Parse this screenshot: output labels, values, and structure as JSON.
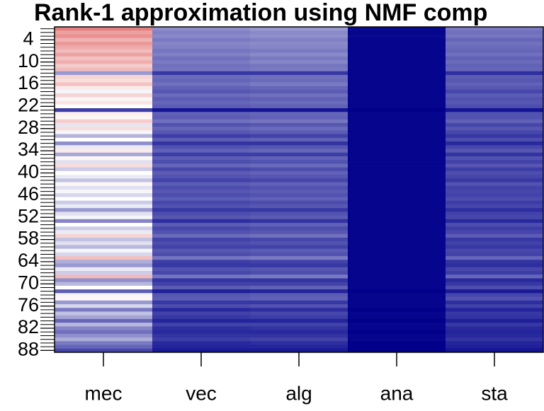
{
  "chart_data": {
    "type": "heatmap",
    "title": "Rank-1 approximation using NMF comp",
    "categories": [
      "mec",
      "vec",
      "alg",
      "ana",
      "sta"
    ],
    "y": [
      1,
      2,
      3,
      4,
      5,
      6,
      7,
      8,
      9,
      10,
      11,
      12,
      13,
      14,
      15,
      16,
      17,
      18,
      19,
      20,
      21,
      22,
      23,
      24,
      25,
      26,
      27,
      28,
      29,
      30,
      31,
      32,
      33,
      34,
      35,
      36,
      37,
      38,
      39,
      40,
      41,
      42,
      43,
      44,
      45,
      46,
      47,
      48,
      49,
      50,
      51,
      52,
      53,
      54,
      55,
      56,
      57,
      58,
      59,
      60,
      61,
      62,
      63,
      64,
      65,
      66,
      67,
      68,
      69,
      70,
      71,
      72,
      73,
      74,
      75,
      76,
      77,
      78,
      79,
      80,
      81,
      82,
      83,
      84,
      85,
      86,
      87,
      88
    ],
    "ylim": [
      1,
      88
    ],
    "yticks": [
      4,
      10,
      16,
      22,
      28,
      34,
      40,
      46,
      52,
      58,
      64,
      70,
      76,
      82,
      88
    ],
    "zlim": [
      0,
      100
    ],
    "colors": [
      "#00008b",
      "#ffffff",
      "#d42a2a"
    ],
    "values": [
      [
        80,
        72,
        76,
        68,
        74,
        70,
        66,
        72,
        64,
        69,
        62,
        66,
        30,
        60,
        58,
        64,
        55,
        48,
        60,
        52,
        56,
        50,
        12,
        54,
        52,
        62,
        45,
        58,
        48,
        35,
        50,
        28,
        46,
        55,
        33,
        52,
        44,
        58,
        40,
        50,
        46,
        38,
        52,
        44,
        48,
        42,
        50,
        40,
        46,
        30,
        44,
        48,
        26,
        50,
        40,
        46,
        60,
        38,
        44,
        36,
        48,
        42,
        65,
        34,
        30,
        46,
        40,
        66,
        28,
        36,
        50,
        18,
        48,
        52,
        30,
        42,
        24,
        38,
        32,
        20,
        36,
        26,
        22,
        28,
        34,
        24,
        20,
        14
      ],
      [
        28,
        25,
        27,
        24,
        26,
        25,
        23,
        25,
        22,
        24,
        22,
        23,
        11,
        21,
        20,
        22,
        19,
        17,
        21,
        18,
        20,
        18,
        4,
        19,
        18,
        22,
        16,
        20,
        17,
        12,
        18,
        10,
        16,
        19,
        12,
        18,
        15,
        20,
        14,
        18,
        16,
        13,
        18,
        15,
        17,
        15,
        18,
        14,
        16,
        11,
        15,
        17,
        9,
        18,
        14,
        16,
        21,
        13,
        15,
        13,
        17,
        15,
        23,
        12,
        11,
        16,
        14,
        23,
        10,
        13,
        18,
        6,
        17,
        18,
        11,
        15,
        8,
        13,
        11,
        7,
        13,
        9,
        8,
        10,
        12,
        8,
        7,
        5
      ],
      [
        30,
        27,
        28,
        25,
        27,
        26,
        24,
        27,
        24,
        26,
        23,
        24,
        11,
        22,
        21,
        24,
        20,
        18,
        22,
        19,
        21,
        19,
        4,
        20,
        19,
        23,
        17,
        21,
        18,
        13,
        19,
        10,
        17,
        20,
        12,
        19,
        16,
        21,
        15,
        19,
        17,
        14,
        19,
        16,
        18,
        16,
        19,
        15,
        17,
        11,
        16,
        18,
        10,
        19,
        15,
        17,
        22,
        14,
        16,
        13,
        18,
        16,
        24,
        13,
        11,
        17,
        15,
        24,
        10,
        13,
        19,
        7,
        18,
        19,
        11,
        16,
        9,
        14,
        12,
        7,
        13,
        10,
        8,
        10,
        13,
        9,
        7,
        5
      ],
      [
        2,
        1,
        2,
        1,
        1,
        1,
        1,
        1,
        1,
        1,
        1,
        1,
        1,
        1,
        1,
        1,
        1,
        1,
        1,
        1,
        1,
        1,
        0,
        1,
        1,
        1,
        1,
        1,
        1,
        1,
        1,
        1,
        1,
        1,
        1,
        1,
        1,
        1,
        1,
        1,
        1,
        1,
        1,
        1,
        1,
        1,
        1,
        1,
        1,
        1,
        1,
        1,
        1,
        1,
        1,
        1,
        1,
        1,
        1,
        1,
        1,
        1,
        1,
        1,
        1,
        1,
        1,
        1,
        1,
        1,
        1,
        0,
        1,
        1,
        1,
        1,
        0,
        1,
        1,
        0,
        1,
        1,
        0,
        1,
        1,
        0,
        0,
        0
      ],
      [
        24,
        22,
        23,
        20,
        22,
        21,
        20,
        22,
        19,
        21,
        19,
        20,
        9,
        18,
        17,
        19,
        17,
        14,
        18,
        16,
        17,
        15,
        4,
        16,
        16,
        19,
        14,
        17,
        14,
        11,
        15,
        8,
        14,
        17,
        10,
        16,
        13,
        17,
        12,
        15,
        14,
        11,
        16,
        13,
        14,
        13,
        15,
        12,
        14,
        9,
        13,
        14,
        8,
        15,
        12,
        14,
        18,
        11,
        13,
        11,
        14,
        13,
        20,
        10,
        9,
        14,
        12,
        20,
        8,
        11,
        15,
        5,
        14,
        16,
        9,
        13,
        7,
        11,
        10,
        6,
        11,
        8,
        7,
        8,
        10,
        7,
        6,
        4
      ]
    ]
  }
}
